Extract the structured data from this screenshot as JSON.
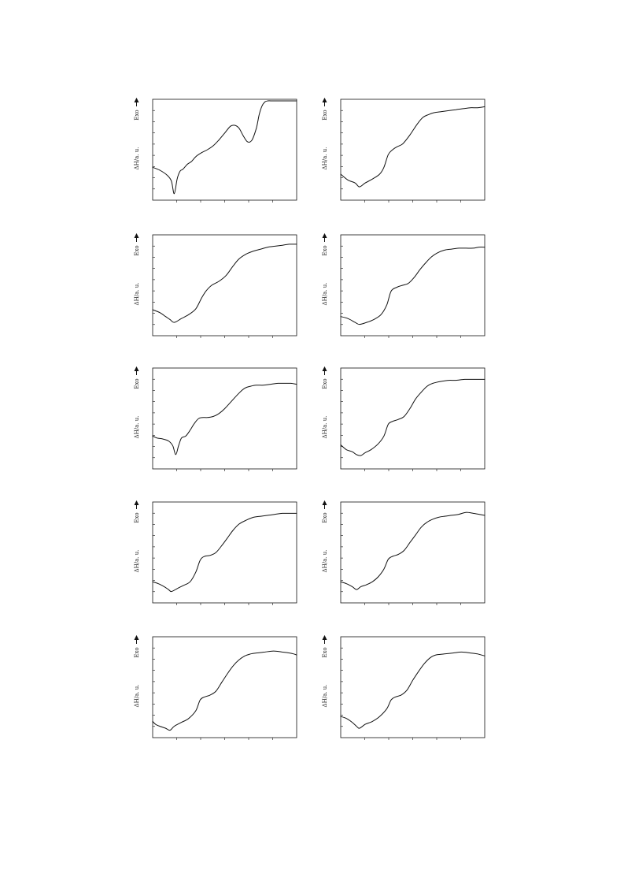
{
  "figure": {
    "ylabel": "ΔH/a. u.",
    "exo_label": "Exo",
    "arrow": "up-arrow"
  },
  "chart_data": [
    {
      "type": "line",
      "ylabel": "ΔH/a. u.",
      "annotation": "Exo",
      "grid": false,
      "x": [
        0,
        0.05,
        0.1,
        0.13,
        0.15,
        0.17,
        0.19,
        0.21,
        0.24,
        0.27,
        0.3,
        0.34,
        0.38,
        0.42,
        0.46,
        0.5,
        0.54,
        0.57,
        0.6,
        0.63,
        0.66,
        0.69,
        0.72,
        0.74,
        0.76,
        0.78,
        0.8,
        0.83,
        0.86,
        0.9,
        0.95,
        1.0
      ],
      "y": [
        0.32,
        0.29,
        0.24,
        0.18,
        0.05,
        0.2,
        0.28,
        0.3,
        0.35,
        0.38,
        0.43,
        0.47,
        0.5,
        0.54,
        0.6,
        0.67,
        0.74,
        0.75,
        0.72,
        0.64,
        0.58,
        0.6,
        0.72,
        0.86,
        0.95,
        0.99,
        1.0,
        1.0,
        1.0,
        1.0,
        1.0,
        1.0
      ]
    },
    {
      "type": "line",
      "ylabel": "ΔH/a. u.",
      "annotation": "Exo",
      "grid": false,
      "x": [
        0,
        0.05,
        0.1,
        0.13,
        0.17,
        0.22,
        0.27,
        0.3,
        0.33,
        0.36,
        0.39,
        0.43,
        0.48,
        0.53,
        0.57,
        0.61,
        0.65,
        0.7,
        0.75,
        0.8,
        0.85,
        0.9,
        0.95,
        1.0
      ],
      "y": [
        0.25,
        0.19,
        0.16,
        0.12,
        0.16,
        0.2,
        0.25,
        0.32,
        0.45,
        0.5,
        0.53,
        0.56,
        0.65,
        0.76,
        0.83,
        0.86,
        0.88,
        0.89,
        0.9,
        0.91,
        0.92,
        0.93,
        0.93,
        0.94
      ]
    },
    {
      "type": "line",
      "ylabel": "ΔH/a. u.",
      "annotation": "Exo",
      "grid": false,
      "x": [
        0,
        0.05,
        0.09,
        0.12,
        0.15,
        0.2,
        0.25,
        0.3,
        0.34,
        0.37,
        0.41,
        0.46,
        0.51,
        0.56,
        0.6,
        0.65,
        0.7,
        0.75,
        0.8,
        0.85,
        0.9,
        0.95,
        1.0
      ],
      "y": [
        0.25,
        0.22,
        0.18,
        0.15,
        0.12,
        0.16,
        0.2,
        0.26,
        0.37,
        0.44,
        0.5,
        0.54,
        0.6,
        0.7,
        0.77,
        0.82,
        0.85,
        0.87,
        0.89,
        0.9,
        0.91,
        0.92,
        0.92
      ]
    },
    {
      "type": "line",
      "ylabel": "ΔH/a. u.",
      "annotation": "Exo",
      "grid": false,
      "x": [
        0,
        0.05,
        0.1,
        0.13,
        0.18,
        0.23,
        0.28,
        0.32,
        0.35,
        0.39,
        0.43,
        0.47,
        0.51,
        0.55,
        0.59,
        0.63,
        0.67,
        0.72,
        0.77,
        0.82,
        0.87,
        0.92,
        0.96,
        1.0
      ],
      "y": [
        0.18,
        0.16,
        0.12,
        0.1,
        0.12,
        0.15,
        0.2,
        0.3,
        0.44,
        0.48,
        0.5,
        0.52,
        0.58,
        0.66,
        0.73,
        0.79,
        0.83,
        0.86,
        0.87,
        0.88,
        0.88,
        0.88,
        0.89,
        0.89
      ]
    },
    {
      "type": "line",
      "ylabel": "ΔH/a. u.",
      "annotation": "Exo",
      "grid": false,
      "x": [
        0,
        0.03,
        0.07,
        0.11,
        0.14,
        0.16,
        0.18,
        0.2,
        0.23,
        0.26,
        0.29,
        0.32,
        0.35,
        0.38,
        0.42,
        0.46,
        0.5,
        0.55,
        0.6,
        0.64,
        0.68,
        0.72,
        0.77,
        0.82,
        0.87,
        0.92,
        0.96,
        1.0
      ],
      "y": [
        0.32,
        0.3,
        0.29,
        0.27,
        0.22,
        0.13,
        0.22,
        0.3,
        0.32,
        0.38,
        0.45,
        0.5,
        0.51,
        0.51,
        0.52,
        0.55,
        0.6,
        0.68,
        0.76,
        0.81,
        0.83,
        0.84,
        0.84,
        0.85,
        0.86,
        0.86,
        0.86,
        0.85
      ]
    },
    {
      "type": "line",
      "ylabel": "ΔH/a. u.",
      "annotation": "Exo",
      "grid": false,
      "x": [
        0,
        0.04,
        0.08,
        0.11,
        0.14,
        0.17,
        0.21,
        0.26,
        0.3,
        0.33,
        0.36,
        0.4,
        0.44,
        0.48,
        0.52,
        0.56,
        0.6,
        0.64,
        0.7,
        0.75,
        0.8,
        0.86,
        0.92,
        0.97,
        1.0
      ],
      "y": [
        0.23,
        0.18,
        0.16,
        0.13,
        0.12,
        0.15,
        0.18,
        0.24,
        0.32,
        0.44,
        0.47,
        0.49,
        0.52,
        0.6,
        0.7,
        0.77,
        0.83,
        0.86,
        0.88,
        0.89,
        0.89,
        0.9,
        0.9,
        0.9,
        0.9
      ]
    },
    {
      "type": "line",
      "ylabel": "ΔH/a. u.",
      "annotation": "Exo",
      "grid": false,
      "x": [
        0,
        0.04,
        0.08,
        0.11,
        0.13,
        0.17,
        0.21,
        0.26,
        0.3,
        0.33,
        0.36,
        0.4,
        0.44,
        0.48,
        0.52,
        0.56,
        0.6,
        0.65,
        0.7,
        0.75,
        0.8,
        0.85,
        0.9,
        0.95,
        1.0
      ],
      "y": [
        0.2,
        0.18,
        0.15,
        0.12,
        0.1,
        0.13,
        0.16,
        0.2,
        0.3,
        0.42,
        0.46,
        0.47,
        0.5,
        0.57,
        0.65,
        0.73,
        0.79,
        0.83,
        0.86,
        0.87,
        0.88,
        0.89,
        0.9,
        0.9,
        0.9
      ]
    },
    {
      "type": "line",
      "ylabel": "ΔH/a. u.",
      "annotation": "Exo",
      "grid": false,
      "x": [
        0,
        0.04,
        0.08,
        0.11,
        0.14,
        0.18,
        0.22,
        0.26,
        0.3,
        0.33,
        0.36,
        0.4,
        0.44,
        0.48,
        0.52,
        0.56,
        0.6,
        0.64,
        0.68,
        0.72,
        0.77,
        0.82,
        0.87,
        0.92,
        0.96,
        1.0
      ],
      "y": [
        0.2,
        0.18,
        0.15,
        0.12,
        0.15,
        0.17,
        0.2,
        0.25,
        0.33,
        0.43,
        0.46,
        0.48,
        0.52,
        0.6,
        0.68,
        0.76,
        0.81,
        0.84,
        0.86,
        0.87,
        0.88,
        0.89,
        0.91,
        0.9,
        0.89,
        0.88
      ]
    },
    {
      "type": "line",
      "ylabel": "ΔH/a. u.",
      "annotation": "Exo",
      "grid": false,
      "x": [
        0,
        0.02,
        0.05,
        0.09,
        0.12,
        0.15,
        0.2,
        0.25,
        0.3,
        0.33,
        0.36,
        0.4,
        0.44,
        0.48,
        0.52,
        0.56,
        0.6,
        0.64,
        0.68,
        0.72,
        0.78,
        0.84,
        0.9,
        0.95,
        0.98,
        1.0
      ],
      "y": [
        0.15,
        0.12,
        0.1,
        0.08,
        0.06,
        0.1,
        0.14,
        0.18,
        0.26,
        0.37,
        0.4,
        0.42,
        0.46,
        0.55,
        0.64,
        0.72,
        0.78,
        0.82,
        0.84,
        0.85,
        0.86,
        0.87,
        0.86,
        0.85,
        0.84,
        0.83
      ]
    },
    {
      "type": "line",
      "ylabel": "ΔH/a. u.",
      "annotation": "Exo",
      "grid": false,
      "x": [
        0,
        0.04,
        0.08,
        0.11,
        0.13,
        0.17,
        0.22,
        0.27,
        0.32,
        0.35,
        0.38,
        0.42,
        0.46,
        0.5,
        0.54,
        0.58,
        0.62,
        0.66,
        0.72,
        0.78,
        0.84,
        0.9,
        0.95,
        1.0
      ],
      "y": [
        0.2,
        0.18,
        0.14,
        0.1,
        0.08,
        0.12,
        0.15,
        0.2,
        0.28,
        0.37,
        0.4,
        0.42,
        0.47,
        0.57,
        0.66,
        0.74,
        0.8,
        0.83,
        0.84,
        0.85,
        0.86,
        0.85,
        0.84,
        0.82
      ]
    }
  ]
}
